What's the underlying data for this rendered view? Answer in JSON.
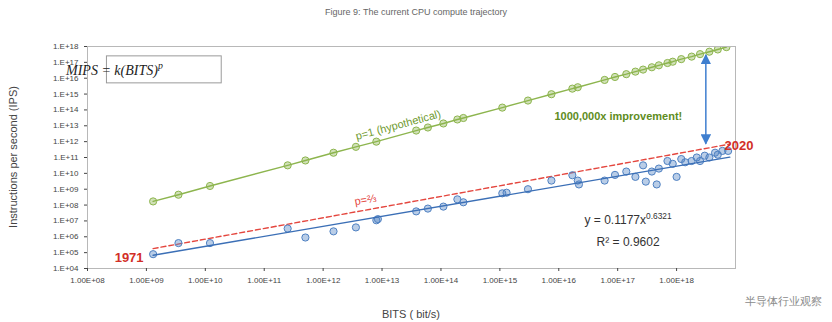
{
  "chart_data": {
    "type": "scatter",
    "title": "Figure 9: The current CPU compute trajectory",
    "x_label": "BITS ( bit/s)",
    "y_label": "Instructions per second (IPS)",
    "log": true,
    "grid": false,
    "xlim": [
      100000000.0,
      1e+19
    ],
    "xticks": [
      {
        "value": 100000000.0,
        "label": "1.00E+08"
      },
      {
        "value": 1000000000.0,
        "label": "1.00E+09"
      },
      {
        "value": 10000000000.0,
        "label": "1.00E+10"
      },
      {
        "value": 100000000000.0,
        "label": "1.00E+11"
      },
      {
        "value": 1000000000000.0,
        "label": "1.00E+12"
      },
      {
        "value": 10000000000000.0,
        "label": "1.00E+13"
      },
      {
        "value": 100000000000000.0,
        "label": "1.00E+14"
      },
      {
        "value": 1000000000000000.0,
        "label": "1.00E+15"
      },
      {
        "value": 1e+16,
        "label": "1.00E+16"
      },
      {
        "value": 1e+17,
        "label": "1.00E+17"
      },
      {
        "value": 1e+18,
        "label": "1.00E+18"
      }
    ],
    "ylim": [
      10000.0,
      1e+18
    ],
    "yticks": [
      {
        "value": 10000.0,
        "label": "1.E+04"
      },
      {
        "value": 100000.0,
        "label": "1.E+05"
      },
      {
        "value": 1000000.0,
        "label": "1.E+06"
      },
      {
        "value": 10000000.0,
        "label": "1.E+07"
      },
      {
        "value": 100000000.0,
        "label": "1.E+08"
      },
      {
        "value": 1000000000.0,
        "label": "1.E+09"
      },
      {
        "value": 10000000000.0,
        "label": "1.E+10"
      },
      {
        "value": 100000000000.0,
        "label": "1.E+11"
      },
      {
        "value": 1000000000000.0,
        "label": "1.E+12"
      },
      {
        "value": 10000000000000.0,
        "label": "1.E+13"
      },
      {
        "value": 100000000000000.0,
        "label": "1.E+14"
      },
      {
        "value": 1000000000000000.0,
        "label": "1.E+15"
      },
      {
        "value": 1e+16,
        "label": "1.E+16"
      },
      {
        "value": 1e+17,
        "label": "1.E+17"
      },
      {
        "value": 1e+18,
        "label": "1.E+18"
      }
    ],
    "series": [
      {
        "name": "p=1 (hypothetical)",
        "type": "line",
        "marker": "circle",
        "color": "#8db54e",
        "x": [
          1300000000.0,
          3500000000.0,
          12000000000.0,
          250000000000.0,
          500000000000.0,
          1500000000000.0,
          3600000000000.0,
          8000000000000.0,
          38000000000000.0,
          60000000000000.0,
          110000000000000.0,
          190000000000000.0,
          240000000000000.0,
          1100000000000000.0,
          3000000000000000.0,
          7500000000000000.0,
          1.7e+16,
          2.1e+16,
          6e+16,
          9e+16,
          1.4e+17,
          2e+17,
          2.7e+17,
          3.8e+17,
          5e+17,
          7e+17,
          8.6e+17,
          1.2e+18,
          1.8e+18,
          2.5e+18,
          3.6e+18,
          5e+18,
          7e+18
        ],
        "values": [
          170000000.0,
          450000000.0,
          1600000000.0,
          32000000000.0,
          65000000000.0,
          200000000000.0,
          470000000000.0,
          1000000000000.0,
          5000000000000.0,
          7800000000000.0,
          14000000000000.0,
          25000000000000.0,
          31000000000000.0,
          140000000000000.0,
          390000000000000.0,
          980000000000000.0,
          2200000000000000.0,
          2700000000000000.0,
          7800000000000000.0,
          1.2e+16,
          1.8e+16,
          2.6e+16,
          3.5e+16,
          4.9e+16,
          6.5e+16,
          9.1e+16,
          1.1e+17,
          1.6e+17,
          2.3e+17,
          3.3e+17,
          4.7e+17,
          6.5e+17,
          9.1e+17
        ]
      },
      {
        "name": "p=⅔",
        "type": "line",
        "line_style": "dashed",
        "color": "#e4473f",
        "x": [
          1300000000.0,
          8e+18
        ],
        "values": [
          180000.0,
          700000000000.0
        ]
      },
      {
        "type": "scatter",
        "marker": "circle",
        "color": "#4f81c2",
        "x": [
          1300000000.0,
          3500000000.0,
          12000000000.0,
          250000000000.0,
          500000000000.0,
          1500000000000.0,
          3600000000000.0,
          8000000000000.0,
          8500000000000.0,
          38000000000000.0,
          60000000000000.0,
          110000000000000.0,
          190000000000000.0,
          240000000000000.0,
          1100000000000000.0,
          1300000000000000.0,
          3000000000000000.0,
          7500000000000000.0,
          1.7e+16,
          2.1e+16,
          2.2e+16,
          6e+16,
          9e+16,
          1.4e+17,
          2e+17,
          2.7e+17,
          3e+17,
          3.8e+17,
          4.6e+17,
          5e+17,
          7e+17,
          8.6e+17,
          1e+18,
          1.2e+18,
          1.4e+18,
          1.8e+18,
          2.2e+18,
          2.5e+18,
          3e+18,
          3.6e+18,
          4.5e+18,
          5e+18,
          6e+18,
          7.5e+18
        ],
        "values": [
          80000.0,
          400000.0,
          400000.0,
          3300000.0,
          900000.0,
          2200000.0,
          3900000.0,
          11000000.0,
          13000000.0,
          40000000.0,
          60000000.0,
          80000000.0,
          230000000.0,
          150000000.0,
          550000000.0,
          600000000.0,
          1000000000.0,
          3500000000.0,
          7600000000.0,
          3500000000.0,
          2000000000.0,
          3500000000.0,
          8000000000.0,
          13000000000.0,
          6000000000.0,
          32000000000.0,
          3000000000.0,
          13000000000.0,
          2000000000.0,
          20000000000.0,
          60000000000.0,
          40000000000.0,
          6000000000.0,
          80000000000.0,
          50000000000.0,
          60000000000.0,
          100000000000.0,
          60000000000.0,
          130000000000.0,
          100000000000.0,
          200000000000.0,
          150000000000.0,
          260000000000.0,
          260000000000.0
        ]
      },
      {
        "type": "line",
        "color": "#3b6fb6",
        "x": [
          1300000000.0,
          8e+18
        ],
        "values": [
          68000.0,
          105000000000.0
        ],
        "equation": {
          "text": "y = 0.1177x",
          "superscript": "0.6321"
        }
      }
    ],
    "formula": {
      "text": "MIPS = k(BITS)",
      "superscript": "p"
    },
    "improvement_label": {
      "text": "1000,000x improvement!",
      "color": "#5e8c22"
    },
    "end_label": {
      "text": "2020",
      "color": "#d22f27"
    },
    "start_label": {
      "text": "1971",
      "color": "#d22f27"
    },
    "r_squared": "R² = 0.9602",
    "watermark": "半导体行业观察"
  }
}
